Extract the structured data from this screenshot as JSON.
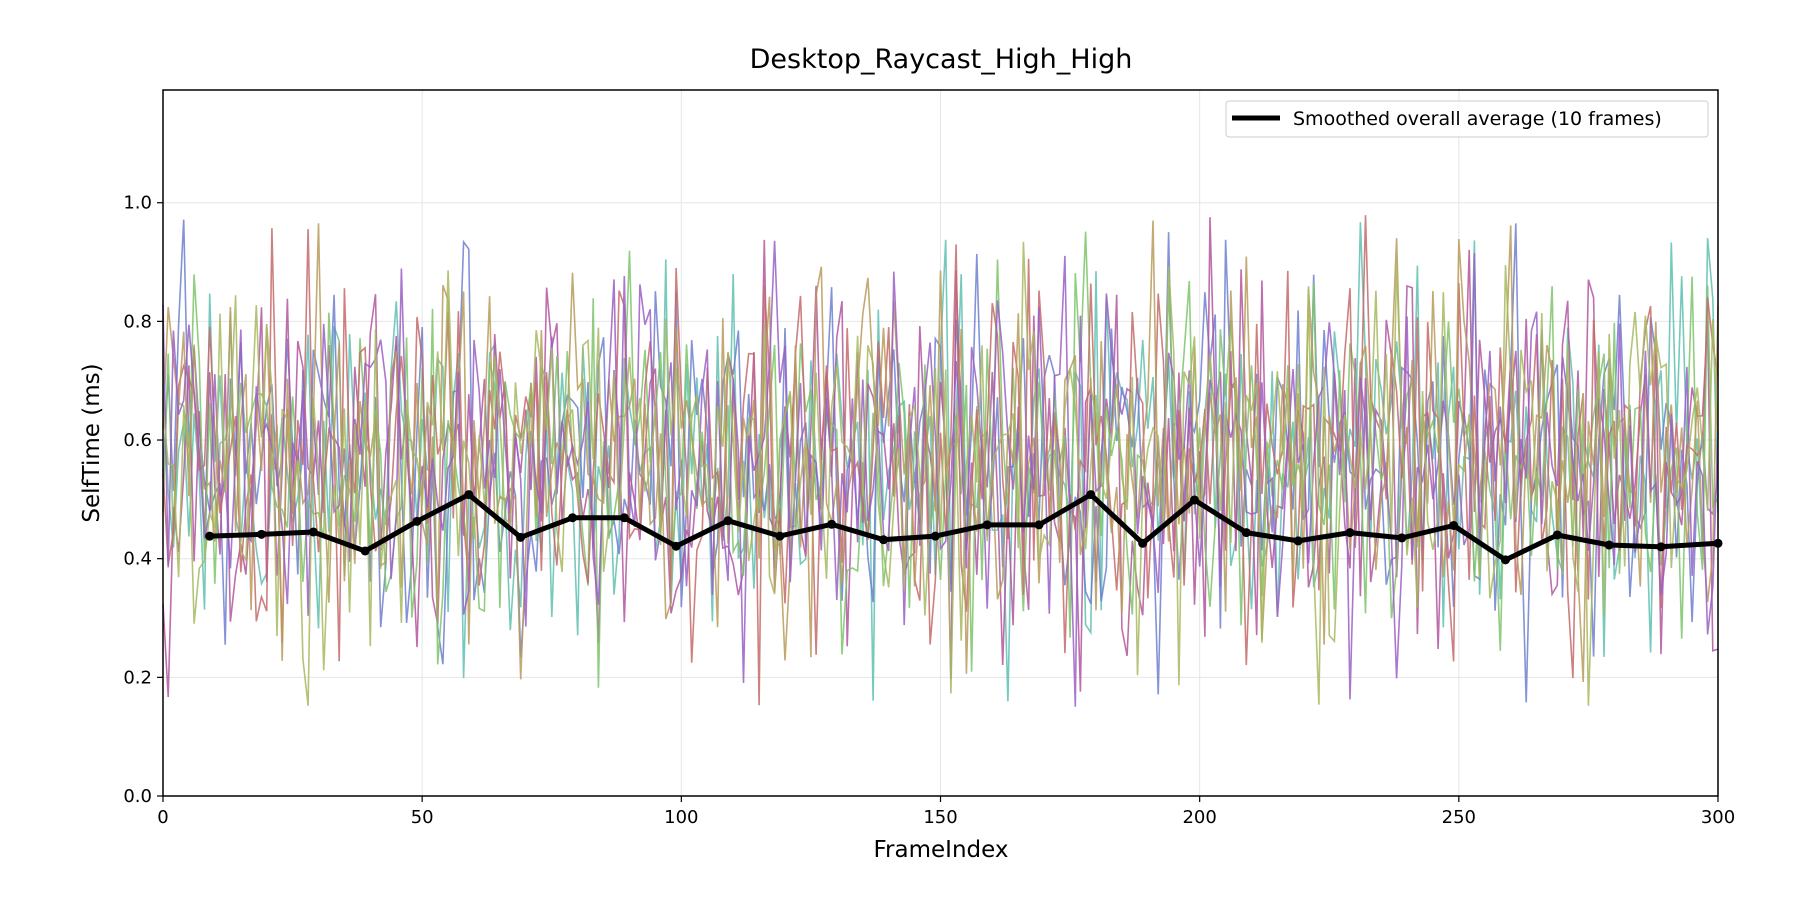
{
  "chart_data": {
    "type": "line",
    "title": "Desktop_Raycast_High_High",
    "xlabel": "FrameIndex",
    "ylabel": "SelfTime (ms)",
    "xlim": [
      0,
      300
    ],
    "ylim": [
      0,
      1.19
    ],
    "xticks": [
      0,
      50,
      100,
      150,
      200,
      250,
      300
    ],
    "yticks": [
      0.0,
      0.2,
      0.4,
      0.6,
      0.8,
      1.0
    ],
    "xtick_labels": [
      "0",
      "50",
      "100",
      "150",
      "200",
      "250",
      "300"
    ],
    "ytick_labels": [
      "0.0",
      "0.2",
      "0.4",
      "0.6",
      "0.8",
      "1.0"
    ],
    "grid": true,
    "legend": {
      "placement": "top-right",
      "entries": [
        {
          "label": "Smoothed overall average (10 frames)",
          "color": "#000000"
        }
      ]
    },
    "background_series": {
      "frames": 300,
      "value_range": [
        0.15,
        0.98
      ],
      "colors": [
        "#5fbfb0",
        "#6e7fcf",
        "#b2569f",
        "#7dc46a",
        "#c46a6a",
        "#b89a5a",
        "#9a5fc4",
        "#a6b85f"
      ]
    },
    "series": [
      {
        "name": "Smoothed overall average (10 frames)",
        "color": "#000000",
        "x": [
          9,
          19,
          29,
          39,
          49,
          59,
          69,
          79,
          89,
          99,
          109,
          119,
          129,
          139,
          149,
          159,
          169,
          179,
          189,
          199,
          209,
          219,
          229,
          239,
          249,
          259,
          269,
          279,
          289,
          300
        ],
        "y": [
          0.438,
          0.441,
          0.445,
          0.413,
          0.463,
          0.508,
          0.436,
          0.469,
          0.469,
          0.421,
          0.464,
          0.438,
          0.458,
          0.432,
          0.438,
          0.457,
          0.457,
          0.508,
          0.426,
          0.499,
          0.444,
          0.43,
          0.444,
          0.435,
          0.456,
          0.398,
          0.44,
          0.423,
          0.42,
          0.426
        ]
      }
    ]
  }
}
